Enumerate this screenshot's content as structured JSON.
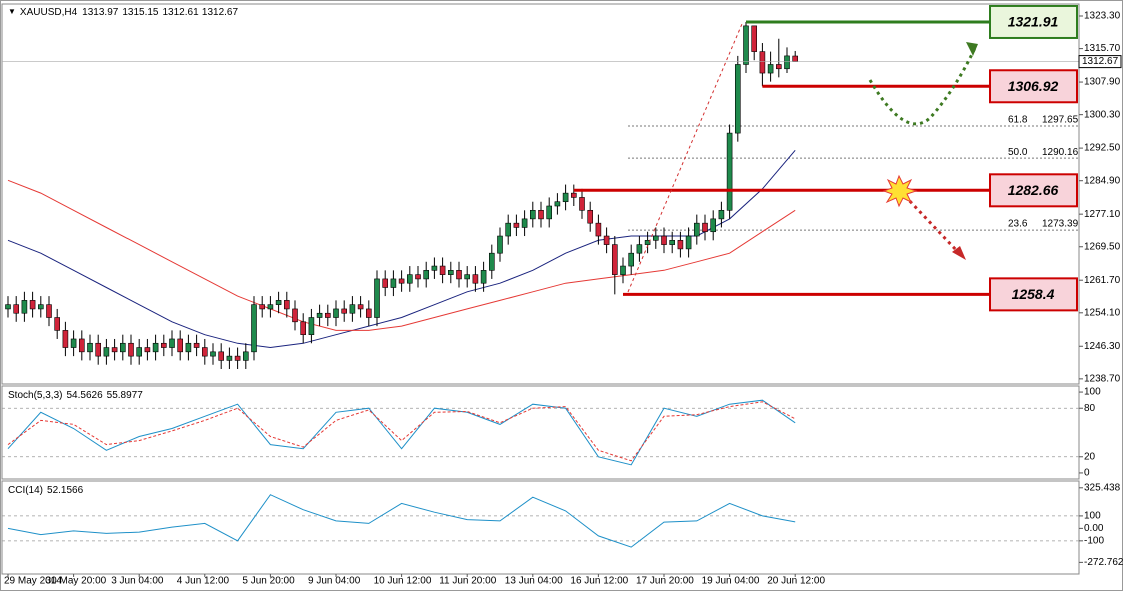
{
  "chart_data": {
    "type": "candlestick",
    "title": "XAUUSD,H4",
    "header_values": [
      1313.97,
      1315.15,
      1312.61,
      1312.67
    ],
    "categories": [
      "29 May 2014",
      null,
      null,
      null,
      null,
      null,
      null,
      null,
      "30 May 20:00",
      null,
      null,
      null,
      null,
      null,
      null,
      null,
      "3 Jun 04:00",
      null,
      null,
      null,
      null,
      null,
      null,
      null,
      "4 Jun 12:00",
      null,
      null,
      null,
      null,
      null,
      null,
      null,
      "5 Jun 20:00",
      null,
      null,
      null,
      null,
      null,
      null,
      null,
      "9 Jun 04:00",
      null,
      null,
      null,
      null,
      null,
      null,
      null,
      "10 Jun 12:00",
      null,
      null,
      null,
      null,
      null,
      null,
      null,
      "11 Jun 20:00",
      null,
      null,
      null,
      null,
      null,
      null,
      null,
      "13 Jun 04:00",
      null,
      null,
      null,
      null,
      null,
      null,
      null,
      "16 Jun 12:00",
      null,
      null,
      null,
      null,
      null,
      null,
      null,
      "17 Jun 20:00",
      null,
      null,
      null,
      null,
      null,
      null,
      null,
      "19 Jun 04:00",
      null,
      null,
      null,
      null,
      null,
      null,
      null,
      "20 Jun 12:00"
    ],
    "open": [
      1255,
      1256,
      1254,
      1257,
      1255,
      1256,
      1253,
      1250,
      1246,
      1248,
      1245,
      1247,
      1244,
      1246,
      1245,
      1247,
      1244,
      1246,
      1245,
      1247,
      1246,
      1248,
      1245,
      1247,
      1246,
      1244,
      1245,
      1243,
      1244,
      1243,
      1245,
      1256,
      1255,
      1256,
      1257,
      1255,
      1252,
      1249,
      1253,
      1254,
      1253,
      1255,
      1254,
      1256,
      1255,
      1253,
      1262,
      1260,
      1262,
      1261,
      1263,
      1262,
      1264,
      1265,
      1263,
      1264,
      1262,
      1263,
      1261,
      1264,
      1268,
      1272,
      1275,
      1274,
      1276,
      1278,
      1276,
      1279,
      1280,
      1282,
      1281,
      1278,
      1275,
      1272,
      1270,
      1263,
      1265,
      1268,
      1270,
      1271,
      1272,
      1270,
      1271,
      1269,
      1272,
      1275,
      1273,
      1276,
      1278,
      1296,
      1312,
      1321,
      1315,
      1310,
      1312,
      1311,
      1313.97
    ],
    "high": [
      1258,
      1258,
      1259,
      1259,
      1258,
      1258,
      1255,
      1252,
      1250,
      1250,
      1249,
      1249,
      1248,
      1248,
      1249,
      1249,
      1248,
      1248,
      1249,
      1249,
      1250,
      1250,
      1249,
      1249,
      1248,
      1247,
      1247,
      1246,
      1246,
      1247,
      1258,
      1258,
      1258,
      1259,
      1259,
      1257,
      1254,
      1255,
      1256,
      1256,
      1257,
      1257,
      1258,
      1258,
      1257,
      1264,
      1264,
      1264,
      1264,
      1265,
      1265,
      1266,
      1267,
      1267,
      1266,
      1266,
      1265,
      1265,
      1266,
      1270,
      1274,
      1277,
      1277,
      1278,
      1280,
      1280,
      1281,
      1282,
      1284,
      1284,
      1283,
      1280,
      1277,
      1274,
      1272,
      1267,
      1270,
      1272,
      1273,
      1274,
      1274,
      1273,
      1273,
      1274,
      1277,
      1277,
      1278,
      1280,
      1298,
      1314,
      1321.91,
      1321,
      1317,
      1315,
      1318,
      1316,
      1315.15
    ],
    "low": [
      1253,
      1252,
      1252,
      1253,
      1253,
      1251,
      1248,
      1244,
      1244,
      1243,
      1243,
      1242,
      1242,
      1243,
      1243,
      1242,
      1242,
      1243,
      1243,
      1244,
      1244,
      1243,
      1243,
      1244,
      1242,
      1242,
      1241,
      1241,
      1241,
      1241,
      1243,
      1253,
      1253,
      1254,
      1253,
      1250,
      1247,
      1247,
      1251,
      1251,
      1251,
      1252,
      1252,
      1253,
      1251,
      1251,
      1258,
      1258,
      1259,
      1259,
      1260,
      1260,
      1262,
      1261,
      1261,
      1260,
      1260,
      1259,
      1259,
      1262,
      1266,
      1270,
      1272,
      1272,
      1274,
      1274,
      1274,
      1277,
      1278,
      1279,
      1276,
      1273,
      1270,
      1268,
      1258.4,
      1261,
      1263,
      1266,
      1268,
      1269,
      1268,
      1268,
      1267,
      1267,
      1270,
      1271,
      1271,
      1274,
      1276,
      1294,
      1310,
      1313,
      1306.92,
      1308,
      1309,
      1310,
      1312.61
    ],
    "close": [
      1256,
      1254,
      1257,
      1255,
      1256,
      1253,
      1250,
      1246,
      1248,
      1245,
      1247,
      1244,
      1246,
      1245,
      1247,
      1244,
      1246,
      1245,
      1247,
      1246,
      1248,
      1245,
      1247,
      1246,
      1244,
      1245,
      1243,
      1244,
      1243,
      1245,
      1256,
      1255,
      1256,
      1257,
      1255,
      1252,
      1249,
      1253,
      1254,
      1253,
      1255,
      1254,
      1256,
      1255,
      1253,
      1262,
      1260,
      1262,
      1261,
      1263,
      1262,
      1264,
      1265,
      1263,
      1264,
      1262,
      1263,
      1261,
      1264,
      1268,
      1272,
      1275,
      1274,
      1276,
      1278,
      1276,
      1279,
      1280,
      1282,
      1281,
      1278,
      1275,
      1272,
      1270,
      1263,
      1265,
      1268,
      1270,
      1271,
      1272,
      1270,
      1271,
      1269,
      1272,
      1275,
      1273,
      1276,
      1278,
      1296,
      1312,
      1321,
      1315,
      1310,
      1312,
      1311,
      1314,
      1312.67
    ],
    "up_color": "#1f8a4c",
    "down_color": "#d0243a",
    "ylim": [
      1237.5,
      1326.1
    ],
    "yticks": [
      {
        "value": 1323.3,
        "label": "1323.30"
      },
      {
        "value": 1315.7,
        "label": "1315.70"
      },
      {
        "value": 1307.9,
        "label": "1307.90"
      },
      {
        "value": 1300.3,
        "label": "1300.30"
      },
      {
        "value": 1292.5,
        "label": "1292.50"
      },
      {
        "value": 1284.9,
        "label": "1284.90"
      },
      {
        "value": 1277.1,
        "label": "1277.10"
      },
      {
        "value": 1269.5,
        "label": "1269.50"
      },
      {
        "value": 1261.7,
        "label": "1261.70"
      },
      {
        "value": 1254.1,
        "label": "1254.10"
      },
      {
        "value": 1246.3,
        "label": "1246.30"
      },
      {
        "value": 1238.7,
        "label": "1238.70"
      }
    ],
    "lines": [
      {
        "color": "#1a237e",
        "x": [
          0,
          4,
          8,
          12,
          16,
          20,
          24,
          28,
          32,
          36,
          40,
          44,
          48,
          52,
          56,
          60,
          64,
          68,
          72,
          76,
          80,
          84,
          88,
          92,
          96
        ],
        "values": [
          1271,
          1268,
          1264,
          1260,
          1256,
          1252,
          1249,
          1247,
          1246,
          1247,
          1249,
          1251,
          1253,
          1256,
          1259,
          1261,
          1264,
          1268,
          1271,
          1272,
          1272,
          1272,
          1276,
          1283,
          1292
        ]
      },
      {
        "color": "#e53935",
        "x": [
          0,
          4,
          8,
          12,
          16,
          20,
          24,
          28,
          32,
          36,
          40,
          44,
          48,
          52,
          56,
          60,
          64,
          68,
          72,
          76,
          80,
          84,
          88,
          92,
          96
        ],
        "values": [
          1285,
          1282,
          1278,
          1274,
          1270,
          1266,
          1262,
          1258,
          1255,
          1252,
          1250,
          1250,
          1251,
          1253,
          1255,
          1257,
          1259,
          1261,
          1262,
          1263,
          1264,
          1266,
          1268,
          1273,
          1278
        ]
      }
    ],
    "current_price": 1312.67,
    "levels": [
      {
        "value": 1321.91,
        "color": "#2e7d1e",
        "fill": "#eaf6dc",
        "start": 90
      },
      {
        "value": 1306.92,
        "color": "#cc0000",
        "fill": "#f8d3da",
        "start": 92
      },
      {
        "value": 1282.66,
        "color": "#cc0000",
        "fill": "#f8d3da",
        "start": 69
      },
      {
        "value": 1258.4,
        "color": "#cc0000",
        "fill": "#f8d3da",
        "start": 75
      }
    ],
    "fib": [
      {
        "ratio": "61.8",
        "value": 1297.65
      },
      {
        "ratio": "50.0",
        "value": 1290.16
      },
      {
        "ratio": "23.6",
        "value": 1273.39
      }
    ],
    "indicators": [
      {
        "title": "Stoch(5,3,3)",
        "readings": [
          54.5626,
          55.8977
        ],
        "ylim": [
          -7.5,
          107.5
        ],
        "yticks": [
          100,
          80,
          20,
          0
        ],
        "levels": [
          80,
          20
        ],
        "lines": [
          {
            "color": "#1e90c8",
            "dash": false,
            "x": [
              0,
              4,
              8,
              12,
              16,
              20,
              24,
              28,
              32,
              36,
              40,
              44,
              48,
              52,
              56,
              60,
              64,
              68,
              72,
              76,
              80,
              84,
              88,
              92,
              96
            ],
            "values": [
              30,
              75,
              55,
              28,
              45,
              55,
              70,
              85,
              35,
              30,
              75,
              80,
              30,
              80,
              75,
              60,
              85,
              80,
              20,
              10,
              80,
              70,
              85,
              90,
              62
            ]
          },
          {
            "color": "#e53935",
            "dash": true,
            "x": [
              0,
              4,
              8,
              12,
              16,
              20,
              24,
              28,
              32,
              36,
              40,
              44,
              48,
              52,
              56,
              60,
              64,
              68,
              72,
              76,
              80,
              84,
              88,
              92,
              96
            ],
            "values": [
              35,
              65,
              60,
              35,
              40,
              52,
              65,
              80,
              45,
              32,
              65,
              78,
              40,
              75,
              76,
              62,
              80,
              82,
              28,
              15,
              70,
              72,
              82,
              88,
              67
            ]
          }
        ]
      },
      {
        "title": "CCI(14)",
        "readings": [
          52.1566
        ],
        "ylim": [
          -366,
          380
        ],
        "yticks": [
          325.438,
          100,
          {
            "value": 0,
            "label": "0.00"
          },
          -100,
          {
            "value": -272.7629,
            "label": "-272.7629"
          }
        ],
        "levels": [
          100,
          -100
        ],
        "lines": [
          {
            "color": "#1e90c8",
            "dash": false,
            "x": [
              0,
              4,
              8,
              12,
              16,
              20,
              24,
              28,
              32,
              36,
              40,
              44,
              48,
              52,
              56,
              60,
              64,
              68,
              72,
              76,
              80,
              84,
              88,
              92,
              96
            ],
            "values": [
              0,
              -50,
              -20,
              -40,
              -30,
              10,
              40,
              -100,
              270,
              150,
              60,
              40,
              200,
              130,
              70,
              60,
              250,
              140,
              -60,
              -150,
              50,
              60,
              200,
              100,
              52
            ]
          }
        ]
      }
    ]
  }
}
